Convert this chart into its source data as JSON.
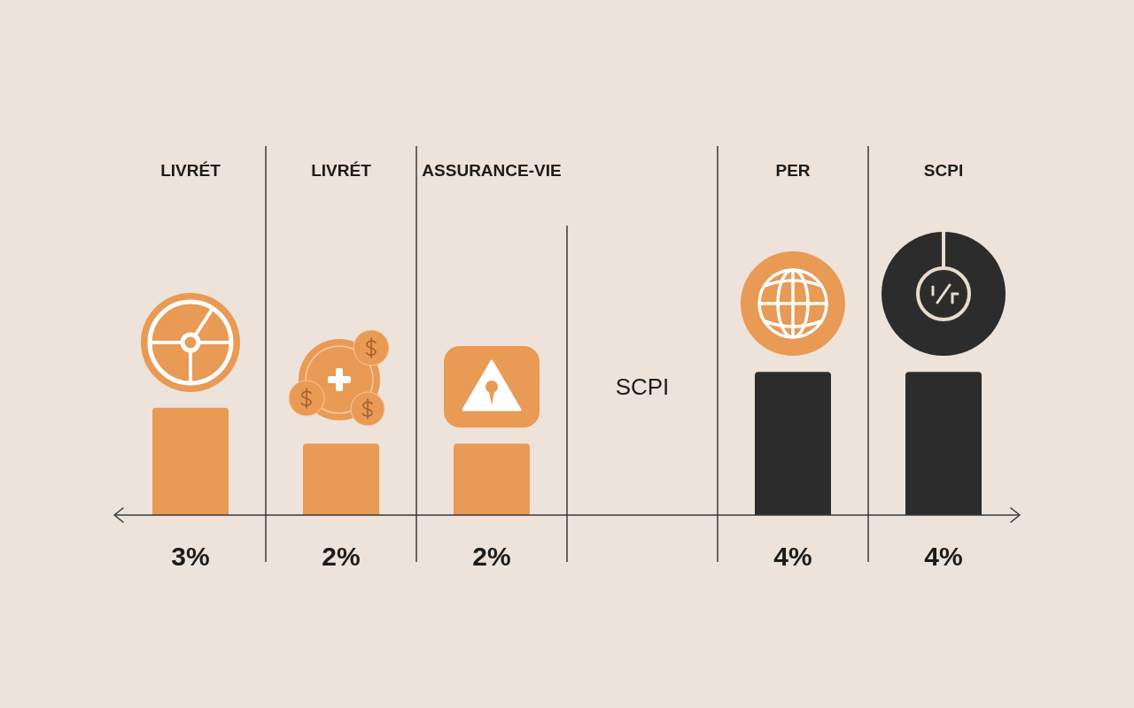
{
  "chart_data": {
    "type": "bar",
    "categories": [
      "LIVRÉT",
      "LIVRÉT",
      "ASSURANCE-VIE",
      null,
      "PER",
      "SCPI"
    ],
    "values": [
      3,
      2,
      2,
      null,
      4,
      4
    ],
    "colors": [
      "#e99a55",
      "#e99a55",
      "#e99a55",
      null,
      "#2c2c2c",
      "#2c2c2c"
    ],
    "value_labels": [
      "3%",
      "2%",
      "2%",
      null,
      "4%",
      "4%"
    ],
    "annotations": [
      "SCPI"
    ],
    "grid": "x"
  }
}
